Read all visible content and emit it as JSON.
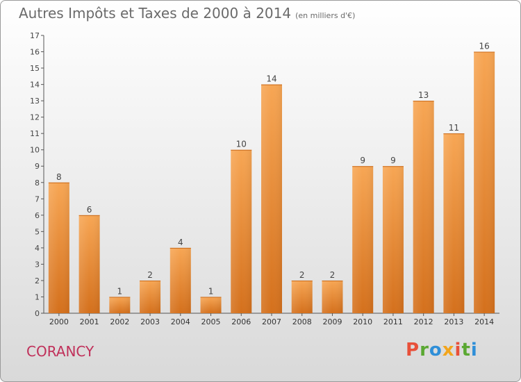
{
  "chart_data": {
    "type": "bar",
    "title": "Autres Impôts et Taxes de 2000 à 2014",
    "subtitle": "(en milliers d'€)",
    "categories": [
      "2000",
      "2001",
      "2002",
      "2003",
      "2004",
      "2005",
      "2006",
      "2007",
      "2008",
      "2009",
      "2010",
      "2011",
      "2012",
      "2013",
      "2014"
    ],
    "values": [
      8,
      6,
      1,
      2,
      4,
      1,
      10,
      14,
      2,
      2,
      9,
      9,
      13,
      11,
      16
    ],
    "ylim": [
      0,
      17
    ],
    "yticks": [
      0,
      1,
      2,
      3,
      4,
      5,
      6,
      7,
      8,
      9,
      10,
      11,
      12,
      13,
      14,
      15,
      16,
      17
    ],
    "xlabel": "",
    "ylabel": "",
    "grid": false,
    "bar_color_top": "#f7a654",
    "bar_color_bottom": "#d4701c"
  },
  "footer": {
    "place": "CORANCY",
    "logo": "Proxiti",
    "logo_colors": [
      "#e8503a",
      "#5aa832",
      "#2f8fd8",
      "#f2a51c",
      "#e8503a",
      "#5aa832",
      "#2f8fd8"
    ]
  },
  "colors": {
    "place_text": "#c0305a",
    "title_text": "#6a6a6a"
  }
}
